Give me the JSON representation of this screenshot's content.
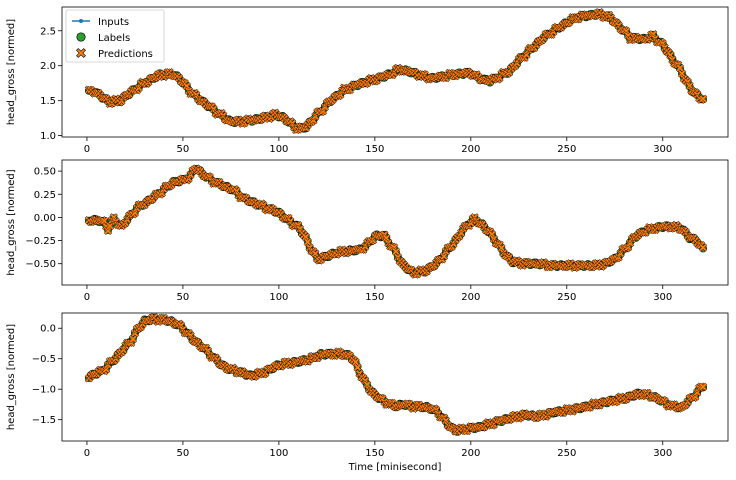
{
  "chart_data": [
    {
      "type": "scatter",
      "ylabel": "head_gross [normed]",
      "xlim": [
        -13,
        334
      ],
      "ylim": [
        0.98,
        2.84
      ],
      "xticks": [
        0,
        50,
        100,
        150,
        200,
        250,
        300
      ],
      "yticks": [
        1.0,
        1.5,
        2.0,
        2.5
      ],
      "ytick_labels": [
        "1.0",
        "1.5",
        "2.0",
        "2.5"
      ],
      "legend": {
        "placement": "top-left",
        "entries": [
          "Inputs",
          "Labels",
          "Predictions"
        ]
      },
      "control_points": [
        [
          1,
          1.62
        ],
        [
          3,
          1.65
        ],
        [
          8,
          1.55
        ],
        [
          12,
          1.48
        ],
        [
          17,
          1.5
        ],
        [
          22,
          1.6
        ],
        [
          28,
          1.72
        ],
        [
          33,
          1.8
        ],
        [
          38,
          1.87
        ],
        [
          45,
          1.88
        ],
        [
          48,
          1.82
        ],
        [
          55,
          1.6
        ],
        [
          62,
          1.45
        ],
        [
          67,
          1.35
        ],
        [
          72,
          1.25
        ],
        [
          75,
          1.2
        ],
        [
          80,
          1.2
        ],
        [
          86,
          1.22
        ],
        [
          92,
          1.25
        ],
        [
          98,
          1.3
        ],
        [
          103,
          1.25
        ],
        [
          107,
          1.15
        ],
        [
          110,
          1.1
        ],
        [
          114,
          1.12
        ],
        [
          120,
          1.3
        ],
        [
          127,
          1.5
        ],
        [
          134,
          1.65
        ],
        [
          140,
          1.72
        ],
        [
          147,
          1.78
        ],
        [
          153,
          1.83
        ],
        [
          158,
          1.88
        ],
        [
          163,
          1.95
        ],
        [
          170,
          1.9
        ],
        [
          175,
          1.85
        ],
        [
          180,
          1.82
        ],
        [
          186,
          1.85
        ],
        [
          193,
          1.88
        ],
        [
          200,
          1.9
        ],
        [
          204,
          1.82
        ],
        [
          210,
          1.78
        ],
        [
          215,
          1.85
        ],
        [
          220,
          1.92
        ],
        [
          226,
          2.1
        ],
        [
          232,
          2.25
        ],
        [
          237,
          2.38
        ],
        [
          242,
          2.48
        ],
        [
          248,
          2.58
        ],
        [
          252,
          2.65
        ],
        [
          256,
          2.7
        ],
        [
          262,
          2.72
        ],
        [
          266,
          2.74
        ],
        [
          272,
          2.7
        ],
        [
          278,
          2.55
        ],
        [
          283,
          2.4
        ],
        [
          290,
          2.38
        ],
        [
          295,
          2.42
        ],
        [
          300,
          2.3
        ],
        [
          305,
          2.1
        ],
        [
          310,
          1.9
        ],
        [
          315,
          1.65
        ],
        [
          318,
          1.58
        ],
        [
          321,
          1.52
        ]
      ]
    },
    {
      "type": "scatter",
      "ylabel": "head_gross [normed]",
      "xlim": [
        -13,
        334
      ],
      "ylim": [
        -0.73,
        0.62
      ],
      "xticks": [
        0,
        50,
        100,
        150,
        200,
        250,
        300
      ],
      "yticks": [
        -0.5,
        -0.25,
        0.0,
        0.25,
        0.5
      ],
      "ytick_labels": [
        "−0.50",
        "−0.25",
        "0.00",
        "0.25",
        "0.50"
      ],
      "control_points": [
        [
          1,
          -0.03
        ],
        [
          5,
          -0.03
        ],
        [
          9,
          -0.05
        ],
        [
          11,
          -0.12
        ],
        [
          14,
          -0.02
        ],
        [
          18,
          -0.1
        ],
        [
          22,
          0.0
        ],
        [
          26,
          0.1
        ],
        [
          30,
          0.15
        ],
        [
          35,
          0.22
        ],
        [
          40,
          0.3
        ],
        [
          45,
          0.38
        ],
        [
          50,
          0.4
        ],
        [
          54,
          0.45
        ],
        [
          57,
          0.54
        ],
        [
          60,
          0.47
        ],
        [
          65,
          0.4
        ],
        [
          70,
          0.35
        ],
        [
          76,
          0.3
        ],
        [
          82,
          0.2
        ],
        [
          88,
          0.15
        ],
        [
          94,
          0.1
        ],
        [
          100,
          0.05
        ],
        [
          106,
          -0.05
        ],
        [
          110,
          -0.1
        ],
        [
          114,
          -0.22
        ],
        [
          117,
          -0.35
        ],
        [
          120,
          -0.45
        ],
        [
          125,
          -0.42
        ],
        [
          130,
          -0.38
        ],
        [
          137,
          -0.36
        ],
        [
          142,
          -0.35
        ],
        [
          146,
          -0.3
        ],
        [
          150,
          -0.2
        ],
        [
          155,
          -0.2
        ],
        [
          160,
          -0.35
        ],
        [
          165,
          -0.52
        ],
        [
          170,
          -0.6
        ],
        [
          176,
          -0.58
        ],
        [
          182,
          -0.5
        ],
        [
          187,
          -0.38
        ],
        [
          192,
          -0.25
        ],
        [
          198,
          -0.08
        ],
        [
          202,
          -0.02
        ],
        [
          206,
          -0.08
        ],
        [
          212,
          -0.22
        ],
        [
          217,
          -0.38
        ],
        [
          222,
          -0.48
        ],
        [
          228,
          -0.5
        ],
        [
          235,
          -0.5
        ],
        [
          242,
          -0.52
        ],
        [
          250,
          -0.52
        ],
        [
          258,
          -0.52
        ],
        [
          265,
          -0.52
        ],
        [
          270,
          -0.5
        ],
        [
          275,
          -0.45
        ],
        [
          280,
          -0.35
        ],
        [
          285,
          -0.22
        ],
        [
          290,
          -0.15
        ],
        [
          295,
          -0.12
        ],
        [
          300,
          -0.1
        ],
        [
          305,
          -0.1
        ],
        [
          310,
          -0.12
        ],
        [
          314,
          -0.22
        ],
        [
          318,
          -0.25
        ],
        [
          321,
          -0.35
        ]
      ]
    },
    {
      "type": "scatter",
      "ylabel": "head_gross [normed]",
      "xlabel": "Time [minisecond]",
      "xlim": [
        -13,
        334
      ],
      "ylim": [
        -1.85,
        0.25
      ],
      "xticks": [
        0,
        50,
        100,
        150,
        200,
        250,
        300
      ],
      "yticks": [
        -1.5,
        -1.0,
        -0.5,
        0.0
      ],
      "ytick_labels": [
        "−1.5",
        "−1.0",
        "−0.5",
        "0.0"
      ],
      "control_points": [
        [
          1,
          -0.8
        ],
        [
          4,
          -0.75
        ],
        [
          8,
          -0.7
        ],
        [
          13,
          -0.55
        ],
        [
          18,
          -0.38
        ],
        [
          23,
          -0.2
        ],
        [
          27,
          0.0
        ],
        [
          30,
          0.12
        ],
        [
          35,
          0.15
        ],
        [
          40,
          0.14
        ],
        [
          45,
          0.1
        ],
        [
          50,
          0.0
        ],
        [
          55,
          -0.18
        ],
        [
          60,
          -0.3
        ],
        [
          65,
          -0.45
        ],
        [
          70,
          -0.6
        ],
        [
          75,
          -0.68
        ],
        [
          80,
          -0.72
        ],
        [
          85,
          -0.78
        ],
        [
          90,
          -0.75
        ],
        [
          95,
          -0.68
        ],
        [
          100,
          -0.6
        ],
        [
          110,
          -0.55
        ],
        [
          117,
          -0.5
        ],
        [
          122,
          -0.43
        ],
        [
          127,
          -0.42
        ],
        [
          132,
          -0.42
        ],
        [
          137,
          -0.45
        ],
        [
          140,
          -0.58
        ],
        [
          145,
          -0.9
        ],
        [
          150,
          -1.1
        ],
        [
          155,
          -1.2
        ],
        [
          160,
          -1.28
        ],
        [
          165,
          -1.25
        ],
        [
          170,
          -1.28
        ],
        [
          178,
          -1.3
        ],
        [
          183,
          -1.38
        ],
        [
          188,
          -1.58
        ],
        [
          192,
          -1.68
        ],
        [
          198,
          -1.65
        ],
        [
          205,
          -1.62
        ],
        [
          212,
          -1.55
        ],
        [
          220,
          -1.48
        ],
        [
          228,
          -1.42
        ],
        [
          235,
          -1.45
        ],
        [
          243,
          -1.38
        ],
        [
          250,
          -1.35
        ],
        [
          258,
          -1.3
        ],
        [
          265,
          -1.25
        ],
        [
          272,
          -1.2
        ],
        [
          280,
          -1.15
        ],
        [
          288,
          -1.07
        ],
        [
          295,
          -1.12
        ],
        [
          300,
          -1.2
        ],
        [
          305,
          -1.28
        ],
        [
          310,
          -1.3
        ],
        [
          315,
          -1.15
        ],
        [
          318,
          -1.05
        ],
        [
          321,
          -0.95
        ]
      ]
    }
  ]
}
